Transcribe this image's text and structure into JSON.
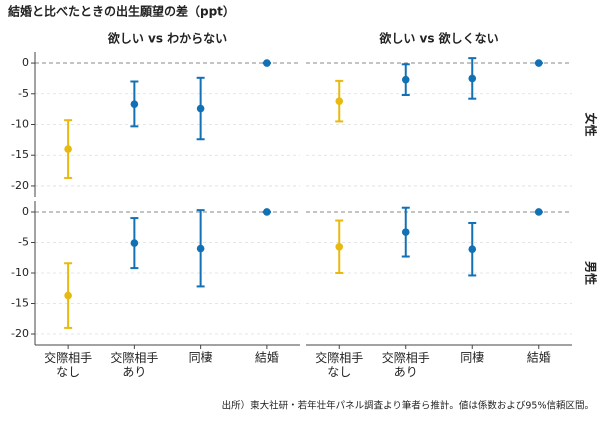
{
  "chart_data": {
    "type": "errorbar",
    "title": "結婚と比べたときの出生願望の差（ppt）",
    "caption": "出所）東大社研・若年壮年パネル調査より筆者ら推計。値は係数および95%信頼区間。",
    "categories": [
      "交際相手\nなし",
      "交際相手\nあり",
      "同棲",
      "結婚"
    ],
    "colors": [
      "#E8B90E",
      "#1270B5",
      "#1270B5",
      "#1270B5"
    ],
    "columns": [
      "欲しい vs わからない",
      "欲しい vs 欲しくない"
    ],
    "ylim": [
      -21.8,
      1.8
    ],
    "yticks": [
      0,
      -5,
      -10,
      -15,
      -20
    ],
    "grid": true,
    "rows": [
      {
        "label": "女性",
        "panels": [
          {
            "values": [
              -14,
              -6.7,
              -7.4,
              0
            ],
            "lower": [
              -18.7,
              -10.3,
              -12.4,
              0
            ],
            "upper": [
              -9.3,
              -3,
              -2.4,
              0
            ]
          },
          {
            "values": [
              -6.2,
              -2.7,
              -2.5,
              0
            ],
            "lower": [
              -9.5,
              -5.2,
              -5.8,
              0
            ],
            "upper": [
              -2.9,
              -0.2,
              0.8,
              0
            ]
          }
        ]
      },
      {
        "label": "男性",
        "panels": [
          {
            "values": [
              -13.7,
              -5.1,
              -6,
              0
            ],
            "lower": [
              -19,
              -9.2,
              -12.2,
              0
            ],
            "upper": [
              -8.4,
              -1,
              0.3,
              0
            ]
          },
          {
            "values": [
              -5.7,
              -3.3,
              -6.1,
              0
            ],
            "lower": [
              -10,
              -7.3,
              -10.4,
              0
            ],
            "upper": [
              -1.4,
              0.7,
              -1.8,
              0
            ]
          }
        ]
      }
    ]
  }
}
